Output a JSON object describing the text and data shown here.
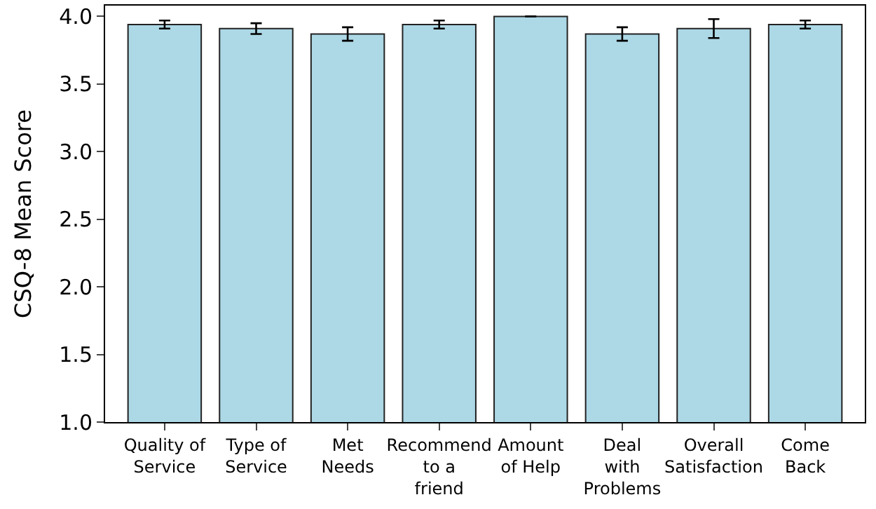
{
  "chart_data": {
    "type": "bar",
    "ylabel": "CSQ-8 Mean Score",
    "categories": [
      "Quality of\nService",
      "Type of\nService",
      "Met\nNeeds",
      "Recommend\nto a\nfriend",
      "Amount\nof Help",
      "Deal\nwith\nProblems",
      "Overall\nSatisfaction",
      "Come\nBack"
    ],
    "values": [
      3.94,
      3.91,
      3.87,
      3.94,
      4.0,
      3.87,
      3.91,
      3.94
    ],
    "errors": [
      0.03,
      0.04,
      0.05,
      0.03,
      null,
      0.05,
      0.07,
      0.03
    ],
    "color": "#add8e6",
    "ylim": [
      1.0,
      4.08
    ],
    "yticks": [
      {
        "value": 1.0,
        "label": "1.0"
      },
      {
        "value": 1.5,
        "label": "1.5"
      },
      {
        "value": 2.0,
        "label": "2.0"
      },
      {
        "value": 2.5,
        "label": "2.5"
      },
      {
        "value": 3.0,
        "label": "3.0"
      },
      {
        "value": 3.5,
        "label": "3.5"
      },
      {
        "value": 4.0,
        "label": "4.0"
      }
    ]
  }
}
